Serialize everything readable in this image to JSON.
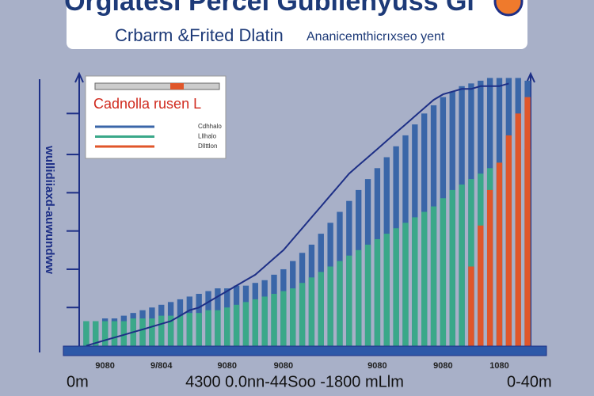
{
  "chart_data": {
    "type": "bar",
    "title": "Orgiatesi Perceı Gubilenyuss Gi",
    "subtitle": "Crbarm &Frited Dlatin",
    "annotation": "Ananicemthicrıxseo yent",
    "y_label": "wullidiiaxd-auwundww",
    "x_label": "4300 0.0nn-44Soo -1800 mLlm",
    "x_left_label": "0m",
    "x_right_label": "0-40m",
    "legend_title": "Cadnolla rusen L",
    "legend_position": "upper left",
    "categories": [
      null,
      null,
      "9080",
      null,
      null,
      null,
      null,
      null,
      "9/804",
      null,
      null,
      null,
      null,
      null,
      null,
      "9080",
      null,
      null,
      null,
      null,
      null,
      "9080",
      null,
      null,
      null,
      null,
      null,
      null,
      null,
      null,
      null,
      "9080",
      null,
      null,
      null,
      null,
      null,
      null,
      "9080",
      null,
      null,
      null,
      null,
      null,
      "1080",
      null,
      null,
      null
    ],
    "ylim": [
      0,
      100
    ],
    "yticks": [
      15,
      29,
      43,
      57,
      71,
      86
    ],
    "series": [
      {
        "name": "Cdhhalo",
        "color": "#3a66a8",
        "values": [
          10,
          10,
          11,
          11,
          12,
          13,
          14,
          15,
          16,
          17,
          18,
          19,
          20,
          21,
          22,
          22,
          23,
          23,
          24,
          25,
          27,
          29,
          32,
          35,
          38,
          42,
          46,
          50,
          54,
          58,
          62,
          66,
          70,
          74,
          78,
          82,
          86,
          89,
          92,
          94,
          96,
          97,
          98,
          99,
          99,
          99,
          99,
          98
        ]
      },
      {
        "name": "Lllhalo",
        "color": "#3aa889",
        "values": [
          10,
          10,
          10,
          10,
          10,
          11,
          11,
          11,
          12,
          12,
          12,
          13,
          13,
          14,
          14,
          15,
          16,
          17,
          18,
          19,
          20,
          21,
          22,
          24,
          26,
          28,
          30,
          32,
          34,
          36,
          38,
          40,
          42,
          44,
          46,
          48,
          50,
          52,
          55,
          58,
          60,
          62,
          64,
          66,
          68,
          70,
          72,
          73
        ]
      },
      {
        "name": "Dllttlon",
        "color": "#e0562a",
        "values": [
          null,
          null,
          null,
          null,
          null,
          null,
          null,
          null,
          null,
          null,
          null,
          null,
          null,
          null,
          null,
          null,
          null,
          null,
          null,
          null,
          null,
          null,
          null,
          null,
          null,
          null,
          null,
          null,
          null,
          null,
          null,
          null,
          null,
          null,
          null,
          null,
          null,
          null,
          null,
          null,
          null,
          30,
          45,
          58,
          68,
          78,
          86,
          92
        ]
      }
    ],
    "line": {
      "color": "#1d2f86",
      "values": [
        1,
        2,
        3,
        4,
        5,
        6,
        7,
        8,
        9,
        10,
        12,
        14,
        15,
        17,
        19,
        21,
        23,
        25,
        27,
        30,
        33,
        36,
        40,
        44,
        48,
        52,
        56,
        60,
        64,
        67,
        70,
        73,
        76,
        79,
        82,
        85,
        88,
        91,
        93,
        94,
        95,
        95,
        96,
        96,
        96,
        97,
        null,
        null
      ]
    }
  }
}
